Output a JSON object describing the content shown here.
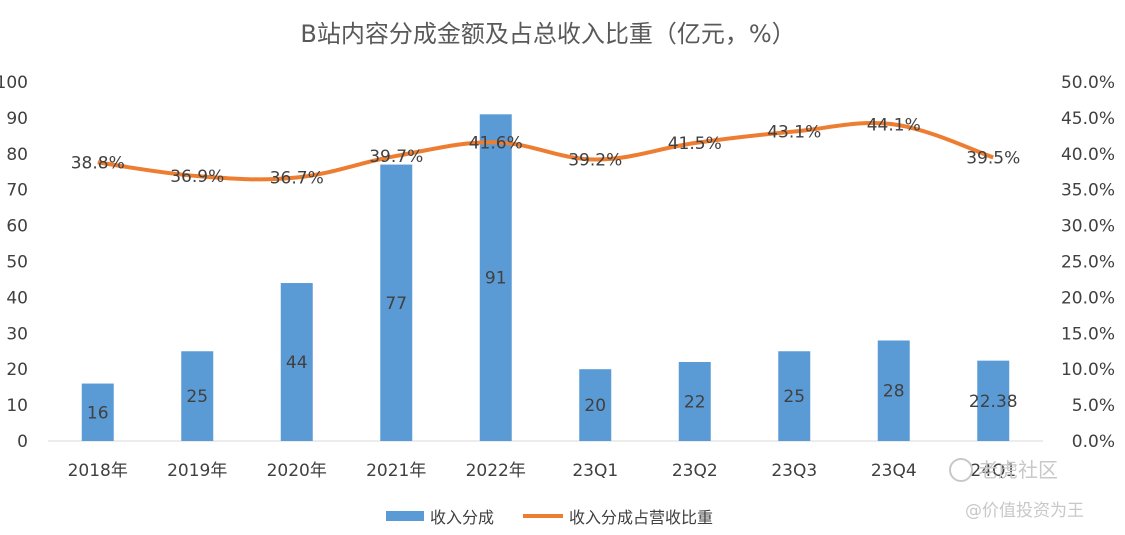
{
  "chart_data": {
    "type": "bar+line",
    "title": "B站内容分成金额及占总收入比重（亿元，%）",
    "categories": [
      "2018年",
      "2019年",
      "2020年",
      "2021年",
      "2022年",
      "23Q1",
      "23Q2",
      "23Q3",
      "23Q4",
      "24Q1"
    ],
    "series": [
      {
        "name": "收入分成",
        "type": "bar",
        "axis": "left",
        "color": "#5b9bd5",
        "values": [
          16,
          25,
          44,
          77,
          91,
          20,
          22,
          25,
          28,
          22.38
        ],
        "labels": [
          "16",
          "25",
          "44",
          "77",
          "91",
          "20",
          "22",
          "25",
          "28",
          "22.38"
        ]
      },
      {
        "name": "收入分成占营收比重",
        "type": "line",
        "axis": "right",
        "color": "#ed7d31",
        "values": [
          38.8,
          36.9,
          36.7,
          39.7,
          41.6,
          39.2,
          41.5,
          43.1,
          44.1,
          39.5
        ],
        "labels": [
          "38.8%",
          "36.9%",
          "36.7%",
          "39.7%",
          "41.6%",
          "39.2%",
          "41.5%",
          "43.1%",
          "44.1%",
          "39.5%"
        ]
      }
    ],
    "y_left": {
      "min": 0,
      "max": 100,
      "ticks": [
        "0",
        "10",
        "20",
        "30",
        "40",
        "50",
        "60",
        "70",
        "80",
        "90",
        "100"
      ]
    },
    "y_right": {
      "min": 0,
      "max": 50,
      "ticks": [
        "0.0%",
        "5.0%",
        "10.0%",
        "15.0%",
        "20.0%",
        "25.0%",
        "30.0%",
        "35.0%",
        "40.0%",
        "45.0%",
        "50.0%"
      ]
    },
    "grid": false,
    "legend": "bottom"
  },
  "watermark": {
    "line1": "老虎社区",
    "line2": "@价值投资为王"
  }
}
